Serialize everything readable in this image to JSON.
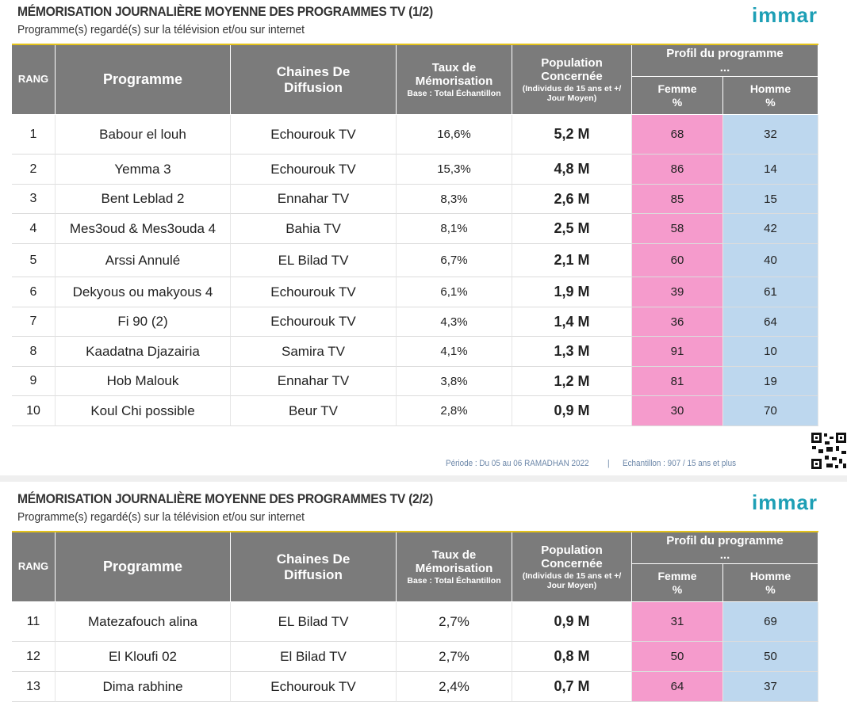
{
  "panels": [
    {
      "title": "MÉMORISATION JOURNALIÈRE MOYENNE DES PROGRAMMES TV (1/2)",
      "subtitle": "Programme(s) regardé(s) sur la télévision et/ou sur internet",
      "logo": "immar",
      "table": {
        "headers": {
          "rang": "RANG",
          "programme": "Programme",
          "chaines": "Chaines De\nDiffusion",
          "taux": "Taux de\nMémorisation",
          "taux_base": "Base : Total Échantillon",
          "population": "Population\nConcernée",
          "population_note": "(Individus de 15 ans et +/\nJour Moyen)",
          "profil": "Profil du programme\n...",
          "femme": "Femme\n%",
          "homme": "Homme\n%"
        },
        "rows": [
          [
            "1",
            "Babour el louh",
            "Echourouk TV",
            "16,6%",
            "5,2 M",
            "68",
            "32"
          ],
          [
            "2",
            "Yemma 3",
            "Echourouk TV",
            "15,3%",
            "4,8 M",
            "86",
            "14"
          ],
          [
            "3",
            "Bent Leblad 2",
            "Ennahar TV",
            "8,3%",
            "2,6 M",
            "85",
            "15"
          ],
          [
            "4",
            "Mes3oud & Mes3ouda 4",
            "Bahia TV",
            "8,1%",
            "2,5 M",
            "58",
            "42"
          ],
          [
            "5",
            "Arssi Annulé",
            "EL Bilad TV",
            "6,7%",
            "2,1 M",
            "60",
            "40"
          ],
          [
            "6",
            "Dekyous ou makyous 4",
            "Echourouk TV",
            "6,1%",
            "1,9 M",
            "39",
            "61"
          ],
          [
            "7",
            "Fi 90 (2)",
            "Echourouk TV",
            "4,3%",
            "1,4 M",
            "36",
            "64"
          ],
          [
            "8",
            "Kaadatna Djazairia",
            "Samira TV",
            "4,1%",
            "1,3 M",
            "91",
            "10"
          ],
          [
            "9",
            "Hob Malouk",
            "Ennahar TV",
            "3,8%",
            "1,2 M",
            "81",
            "19"
          ],
          [
            "10",
            "Koul Chi possible",
            "Beur TV",
            "2,8%",
            "0,9 M",
            "30",
            "70"
          ]
        ]
      },
      "footer": {
        "periode": "Période : Du 05 au 06 RAMADHAN 2022",
        "divider": "|",
        "echantillon": "Echantillon : 907 / 15 ans et plus"
      }
    },
    {
      "title": "MÉMORISATION JOURNALIÈRE MOYENNE DES PROGRAMMES TV (2/2)",
      "subtitle": "Programme(s) regardé(s) sur la télévision et/ou sur internet",
      "logo": "immar",
      "table": {
        "headers": {
          "rang": "RANG",
          "programme": "Programme",
          "chaines": "Chaines De\nDiffusion",
          "taux": "Taux de\nMémorisation",
          "taux_base": "Base : Total Échantillon",
          "population": "Population\nConcernée",
          "population_note": "(Individus de 15 ans et +/\nJour Moyen)",
          "profil": "Profil du programme\n...",
          "femme": "Femme\n%",
          "homme": "Homme\n%"
        },
        "rows": [
          [
            "11",
            "Matezafouch alina",
            "EL Bilad TV",
            "2,7%",
            "0,9 M",
            "31",
            "69"
          ],
          [
            "12",
            "El Kloufi 02",
            "El Bilad TV",
            "2,7%",
            "0,8 M",
            "50",
            "50"
          ],
          [
            "13",
            "Dima rabhine",
            "Echourouk TV",
            "2,4%",
            "0,7 M",
            "64",
            "37"
          ]
        ]
      }
    }
  ]
}
